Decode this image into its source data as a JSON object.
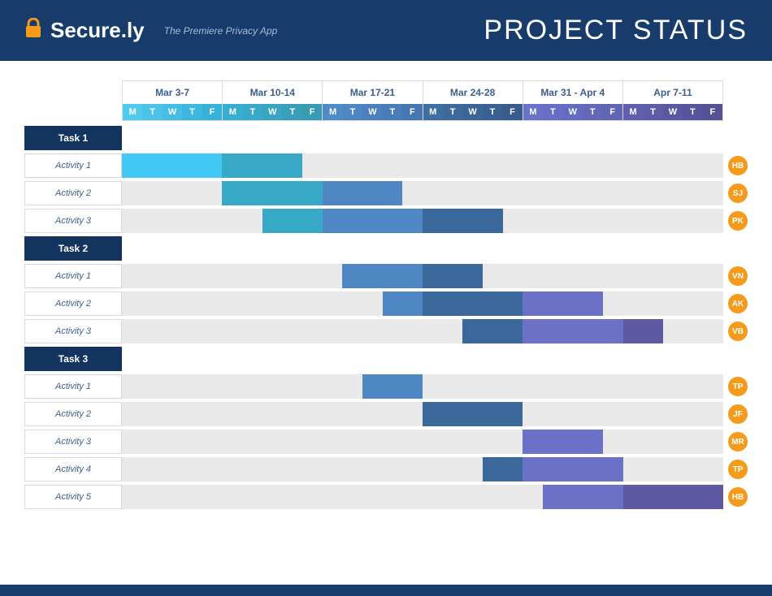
{
  "colors": {
    "header_bg": "#173c6b",
    "lock_icon": "#f59a1b",
    "brand_text": "#ffffff",
    "tagline": "#a9bcd4",
    "title": "#ffffff",
    "week_label": "#3a5f8f",
    "task_label_bg": "#12345f",
    "activity_label_text": "#3a5f8f",
    "row_bg": "#e9e9e9",
    "owner_bg": "#f59a1b",
    "footer_bar": "#173c6b"
  },
  "brand": {
    "name_a": "Secure",
    "name_b": ".ly",
    "tagline": "The Premiere Privacy App"
  },
  "title": "PROJECT STATUS",
  "weeks": [
    {
      "label": "Mar 3-7",
      "day_colors": [
        "#4fc9ee",
        "#4bc3e9",
        "#45bde4",
        "#3eb7df",
        "#36b1da"
      ]
    },
    {
      "label": "Mar 10-14",
      "day_colors": [
        "#37aed0",
        "#38a9c8",
        "#38a4c0",
        "#399fb9",
        "#399ab1"
      ]
    },
    {
      "label": "Mar 17-21",
      "day_colors": [
        "#4f8bc9",
        "#4d86c3",
        "#4b81be",
        "#497cb8",
        "#4777b2"
      ]
    },
    {
      "label": "Mar 24-28",
      "day_colors": [
        "#3f6ea3",
        "#3d699d",
        "#3b6597",
        "#396091",
        "#375b8b"
      ]
    },
    {
      "label": "Mar 31 - Apr 4",
      "day_colors": [
        "#6a71c8",
        "#686ec3",
        "#656bbe",
        "#6368b9",
        "#6065b4"
      ]
    },
    {
      "label": "Apr 7-11",
      "day_colors": [
        "#615fad",
        "#5e5ba7",
        "#5b58a1",
        "#58549b",
        "#555195"
      ]
    }
  ],
  "days": [
    "M",
    "T",
    "W",
    "T",
    "F"
  ],
  "tasks": [
    {
      "name": "Task 1",
      "activities": [
        {
          "name": "Activity 1",
          "owner": "HB",
          "segments": [
            {
              "start": 0,
              "span": 5,
              "color": "#42c8f4"
            },
            {
              "start": 5,
              "span": 4,
              "color": "#38a8c7"
            }
          ]
        },
        {
          "name": "Activity 2",
          "owner": "SJ",
          "segments": [
            {
              "start": 5,
              "span": 5,
              "color": "#38a8c7"
            },
            {
              "start": 10,
              "span": 4,
              "color": "#4f87c4"
            }
          ]
        },
        {
          "name": "Activity 3",
          "owner": "PK",
          "segments": [
            {
              "start": 7,
              "span": 3,
              "color": "#38a8c7"
            },
            {
              "start": 10,
              "span": 5,
              "color": "#4f87c4"
            },
            {
              "start": 15,
              "span": 4,
              "color": "#3b689b"
            }
          ]
        }
      ]
    },
    {
      "name": "Task 2",
      "activities": [
        {
          "name": "Activity 1",
          "owner": "VN",
          "segments": [
            {
              "start": 11,
              "span": 4,
              "color": "#4f87c4"
            },
            {
              "start": 15,
              "span": 3,
              "color": "#3b689b"
            }
          ]
        },
        {
          "name": "Activity 2",
          "owner": "AK",
          "segments": [
            {
              "start": 13,
              "span": 2,
              "color": "#4f87c4"
            },
            {
              "start": 15,
              "span": 5,
              "color": "#3b689b"
            },
            {
              "start": 20,
              "span": 4,
              "color": "#6a71c6"
            }
          ]
        },
        {
          "name": "Activity 3",
          "owner": "VB",
          "segments": [
            {
              "start": 17,
              "span": 3,
              "color": "#3b689b"
            },
            {
              "start": 20,
              "span": 5,
              "color": "#6a71c6"
            },
            {
              "start": 25,
              "span": 2,
              "color": "#5d5aa3"
            }
          ]
        }
      ]
    },
    {
      "name": "Task 3",
      "activities": [
        {
          "name": "Activity 1",
          "owner": "TP",
          "segments": [
            {
              "start": 12,
              "span": 3,
              "color": "#4f87c4"
            }
          ]
        },
        {
          "name": "Activity 2",
          "owner": "JF",
          "segments": [
            {
              "start": 15,
              "span": 5,
              "color": "#3b689b"
            }
          ]
        },
        {
          "name": "Activity 3",
          "owner": "MR",
          "segments": [
            {
              "start": 20,
              "span": 4,
              "color": "#6a71c6"
            }
          ]
        },
        {
          "name": "Activity 4",
          "owner": "TP",
          "segments": [
            {
              "start": 18,
              "span": 2,
              "color": "#3b689b"
            },
            {
              "start": 20,
              "span": 5,
              "color": "#6a71c6"
            }
          ]
        },
        {
          "name": "Activity 5",
          "owner": "HB",
          "segments": [
            {
              "start": 21,
              "span": 4,
              "color": "#6a71c6"
            },
            {
              "start": 25,
              "span": 5,
              "color": "#5d5aa3"
            }
          ]
        }
      ]
    }
  ],
  "chart": {
    "total_days": 30
  }
}
